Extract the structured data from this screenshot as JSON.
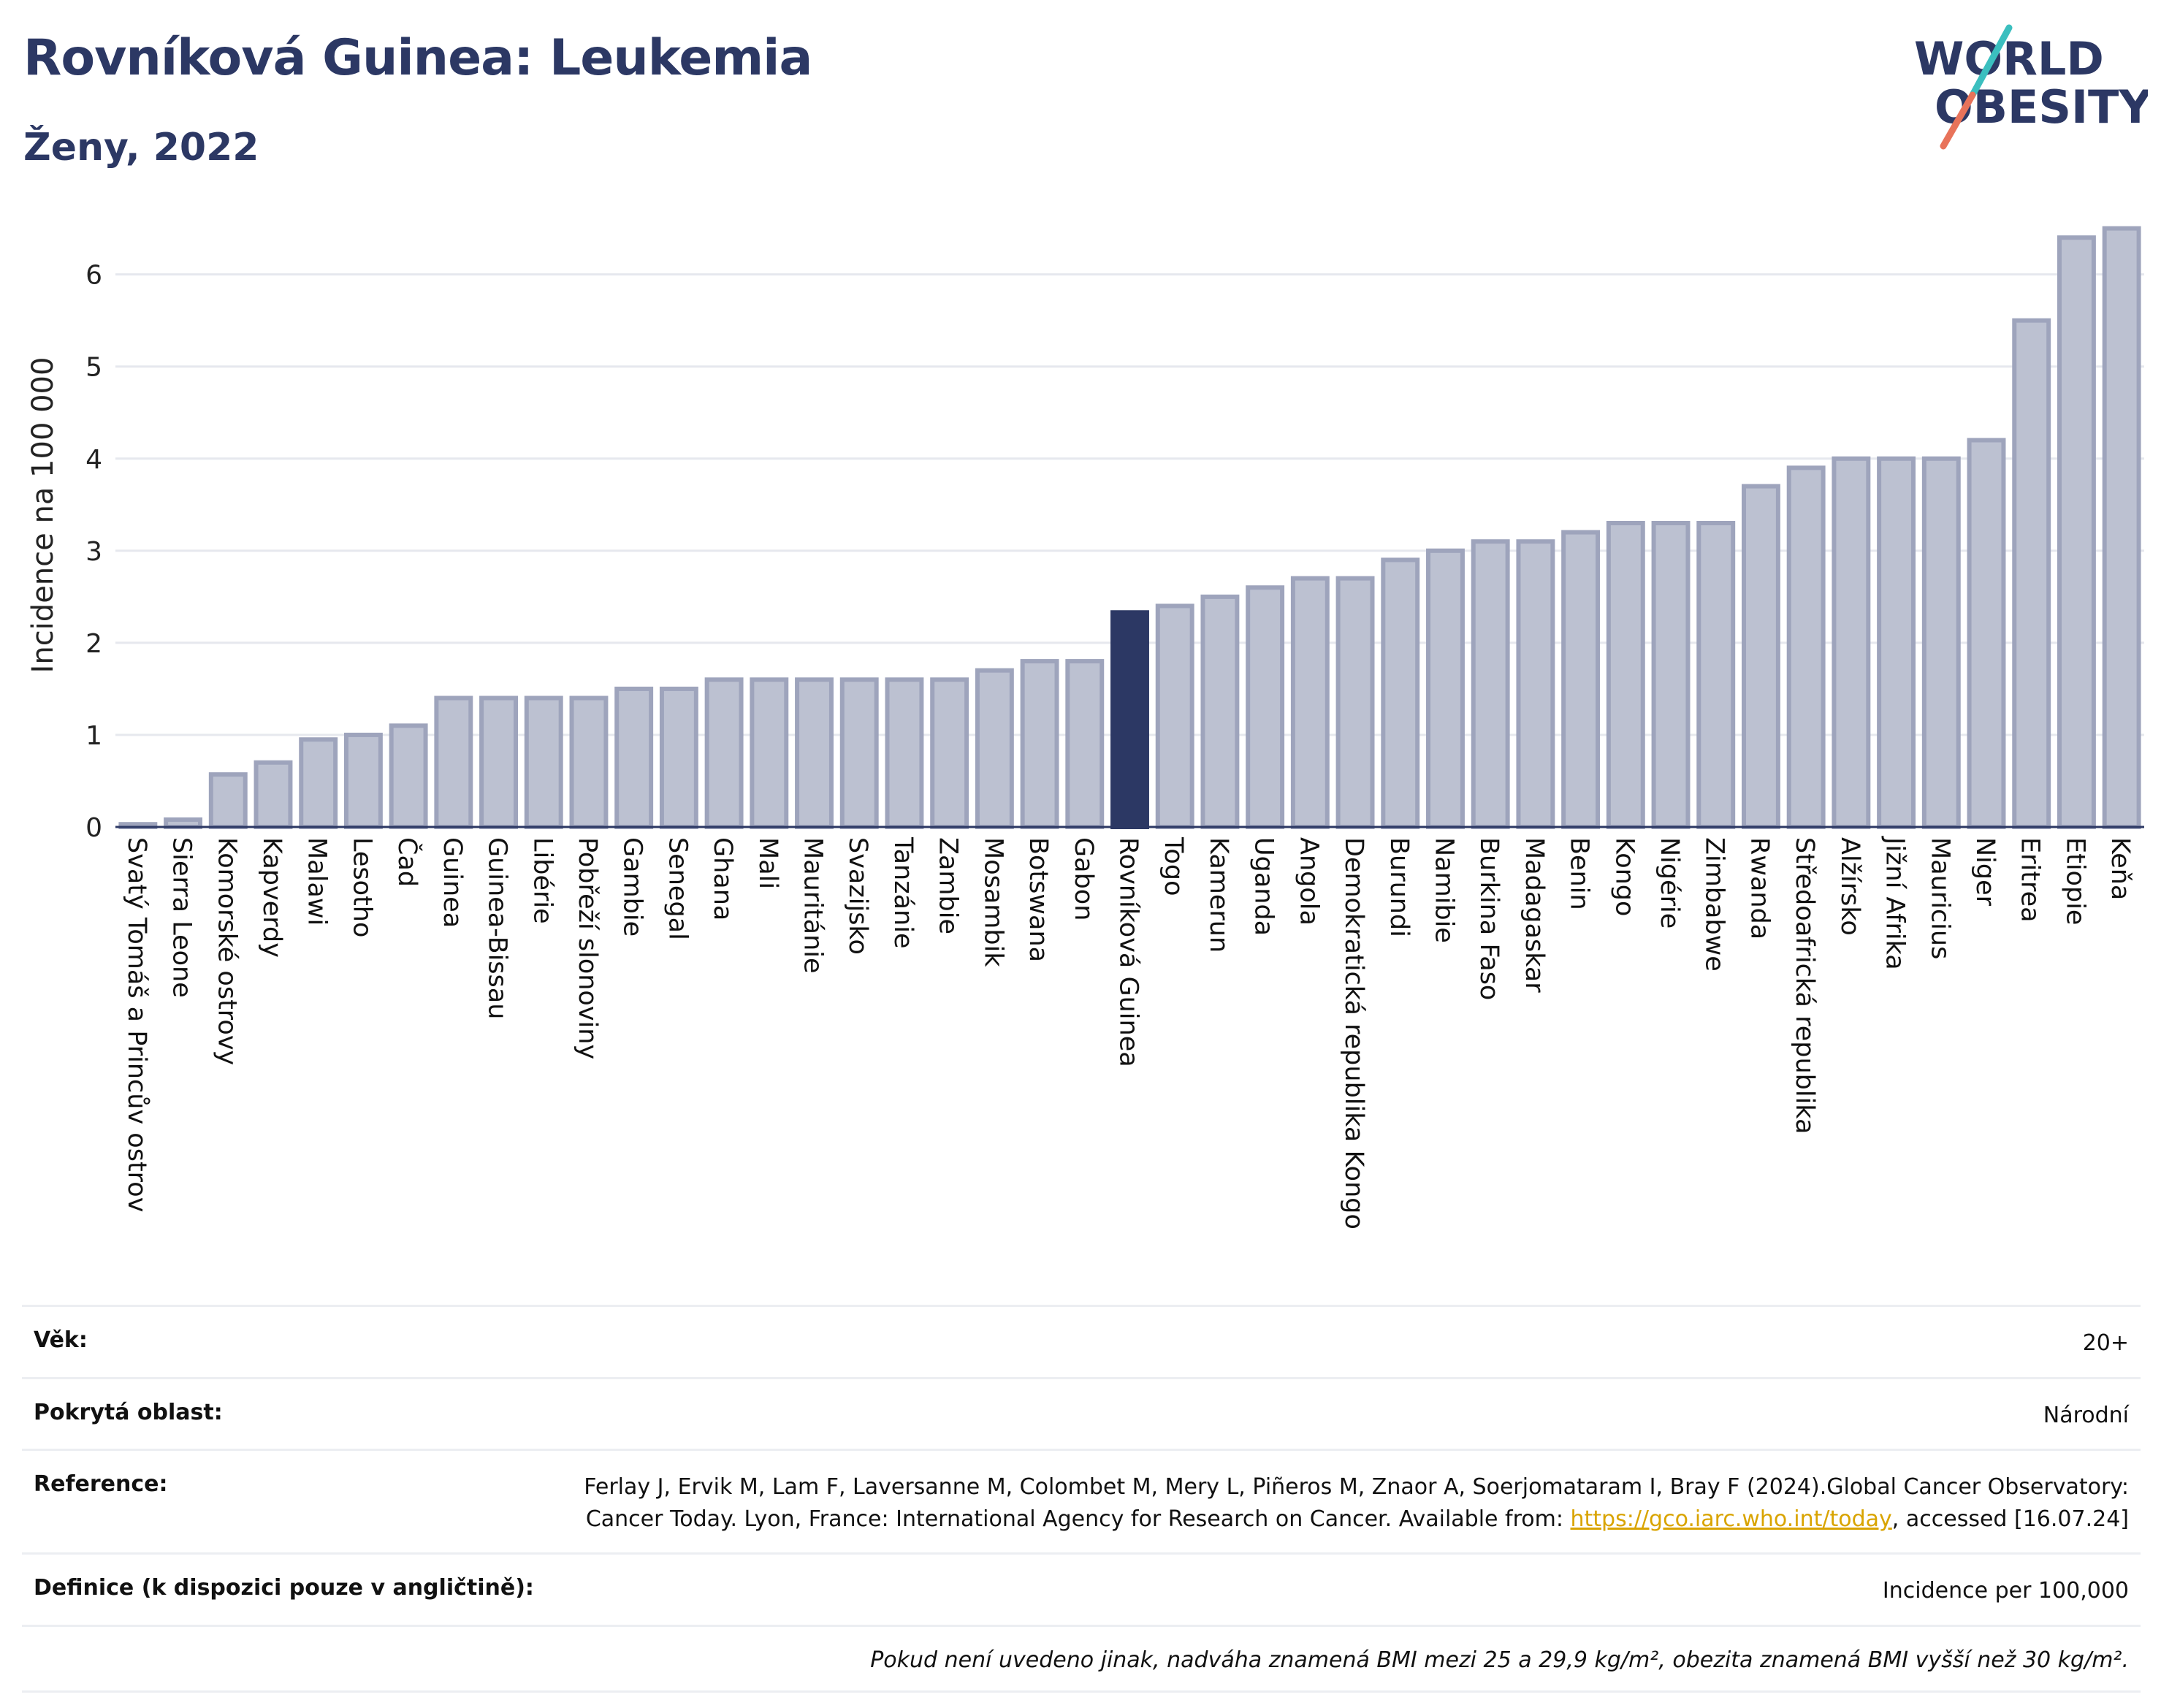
{
  "header": {
    "title": "Rovníková Guinea: Leukemia",
    "subtitle": "Ženy, 2022"
  },
  "logo": {
    "line1": "WORLD",
    "line2": "OBESITY",
    "accent_teal": "#3bbfbf",
    "accent_red": "#e8735a",
    "color": "#2c3864"
  },
  "colors": {
    "bar_default": "#bcc1d1",
    "bar_border": "#9ea4bc",
    "bar_highlight": "#2c3864",
    "grid": "#e6e8ee",
    "axis": "#2c3864"
  },
  "chart_data": {
    "type": "bar",
    "ylabel": "Incidence na 100 000",
    "ylim": [
      0,
      6.6
    ],
    "yticks": [
      0,
      1,
      2,
      3,
      4,
      5,
      6
    ],
    "grid": true,
    "highlight": "Rovníková Guinea",
    "categories": [
      "Svatý Tomáš a Princův ostrov",
      "Sierra Leone",
      "Komorské ostrovy",
      "Kapverdy",
      "Malawi",
      "Lesotho",
      "Čad",
      "Guinea",
      "Guinea-Bissau",
      "Libérie",
      "Pobřeží slonoviny",
      "Gambie",
      "Senegal",
      "Ghana",
      "Mali",
      "Mauritánie",
      "Svazijsko",
      "Tanzánie",
      "Zambie",
      "Mosambik",
      "Botswana",
      "Gabon",
      "Rovníková Guinea",
      "Togo",
      "Kamerun",
      "Uganda",
      "Angola",
      "Demokratická republika Kongo",
      "Burundi",
      "Namibie",
      "Burkina Faso",
      "Madagaskar",
      "Benin",
      "Kongo",
      "Nigérie",
      "Zimbabwe",
      "Rwanda",
      "Středoafrická republika",
      "Alžírsko",
      "Jižní Afrika",
      "Mauricius",
      "Niger",
      "Eritrea",
      "Etiopie",
      "Keňa"
    ],
    "values": [
      0.03,
      0.08,
      0.57,
      0.7,
      0.95,
      1.0,
      1.1,
      1.4,
      1.4,
      1.4,
      1.4,
      1.5,
      1.5,
      1.6,
      1.6,
      1.6,
      1.6,
      1.6,
      1.6,
      1.7,
      1.8,
      1.8,
      2.33,
      2.4,
      2.5,
      2.6,
      2.7,
      2.7,
      2.9,
      3.0,
      3.1,
      3.1,
      3.2,
      3.3,
      3.3,
      3.3,
      3.7,
      3.9,
      4.0,
      4.0,
      4.0,
      4.2,
      5.5,
      6.4,
      6.5
    ]
  },
  "info": {
    "age_label": "Věk:",
    "age_value": "20+",
    "area_label": "Pokrytá oblast:",
    "area_value": "Národní",
    "reference_label": "Reference:",
    "reference_text_1": "Ferlay J, Ervik M, Lam F, Laversanne M, Colombet M, Mery L, Piñeros M, Znaor A, Soerjomataram I, Bray F (2024).Global Cancer Observatory: Cancer Today. Lyon, France: International Agency for Research on Cancer. Available from: ",
    "reference_link": "https://gco.iarc.who.int/today",
    "reference_text_2": ", accessed [16.07.24]",
    "definition_label": "Definice (k dispozici pouze v angličtině):",
    "definition_value": "Incidence per 100,000",
    "note": "Pokud není uvedeno jinak, nadváha znamená BMI mezi 25 a 29,9 kg/m², obezita znamená BMI vyšší než 30 kg/m²."
  }
}
